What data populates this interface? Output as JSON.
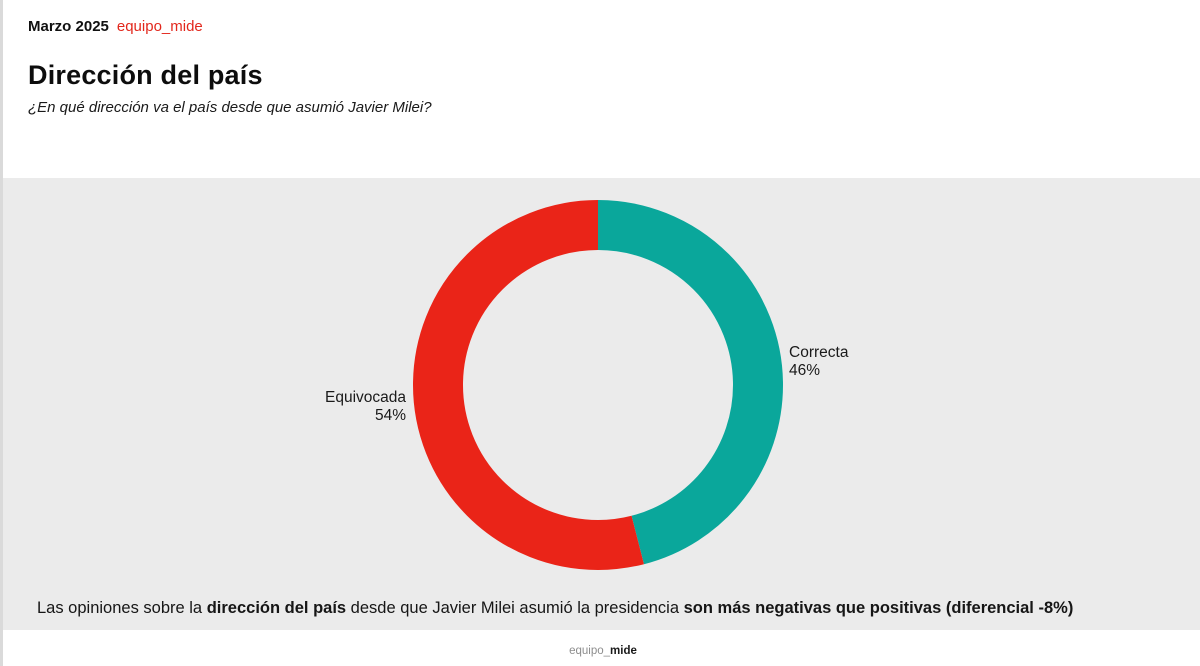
{
  "header": {
    "date": "Marzo 2025",
    "brand": "equipo_mide",
    "brand_color": "#e2271c",
    "title": "Dirección del país",
    "subtitle": "¿En qué dirección va el país desde que asumió Javier Milei?"
  },
  "chart_data": {
    "type": "pie",
    "donut": true,
    "title": "Dirección del país",
    "unit": "%",
    "start_angle_deg": 0,
    "direction": "clockwise",
    "inner_radius_ratio": 0.73,
    "panel_background": "#ebebeb",
    "legend": false,
    "segments": [
      {
        "label": "Correcta",
        "value": 46,
        "display": "46%",
        "color": "#0aa79b"
      },
      {
        "label": "Equivocada",
        "value": 54,
        "display": "54%",
        "color": "#ea2418"
      }
    ]
  },
  "caption": {
    "parts": [
      {
        "text": "Las opiniones sobre la ",
        "bold": false
      },
      {
        "text": "dirección del país",
        "bold": true
      },
      {
        "text": " desde que Javier Milei asumió la presidencia ",
        "bold": false
      },
      {
        "text": "son más negativas que positivas (diferencial -8%)",
        "bold": true
      }
    ]
  },
  "footer": {
    "brand_prefix": "equipo_",
    "brand_suffix": "mide"
  }
}
